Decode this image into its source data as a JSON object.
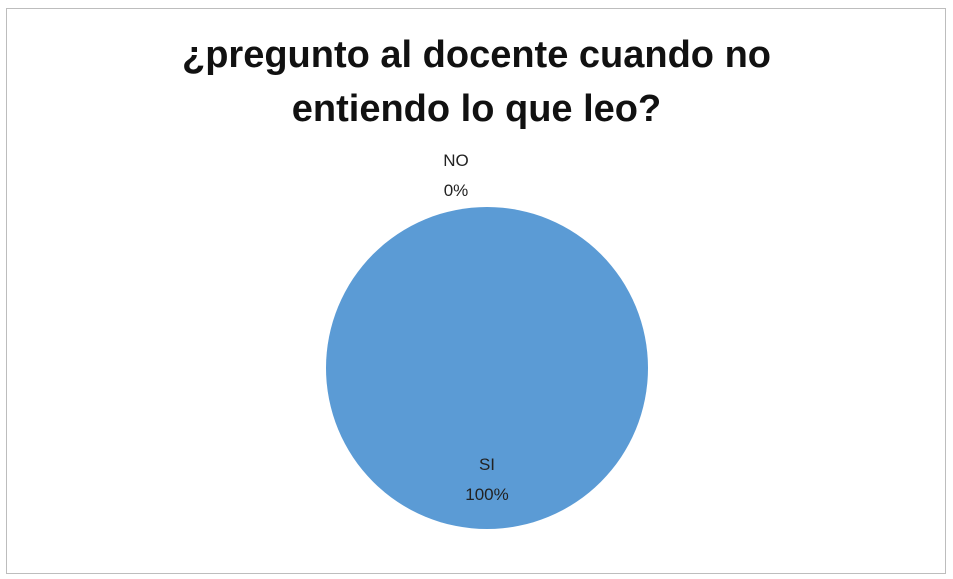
{
  "chart_data": {
    "type": "pie",
    "title_lines": [
      "¿pregunto al docente cuando no",
      "entiendo lo que leo?"
    ],
    "categories": [
      "NO",
      "SI"
    ],
    "values": [
      0,
      100
    ],
    "data_labels": [
      {
        "category": "NO",
        "percent": "0%"
      },
      {
        "category": "SI",
        "percent": "100%"
      }
    ],
    "colors": {
      "SI": "#5b9bd5",
      "NO": "#ed7d31"
    },
    "legend": "none"
  }
}
